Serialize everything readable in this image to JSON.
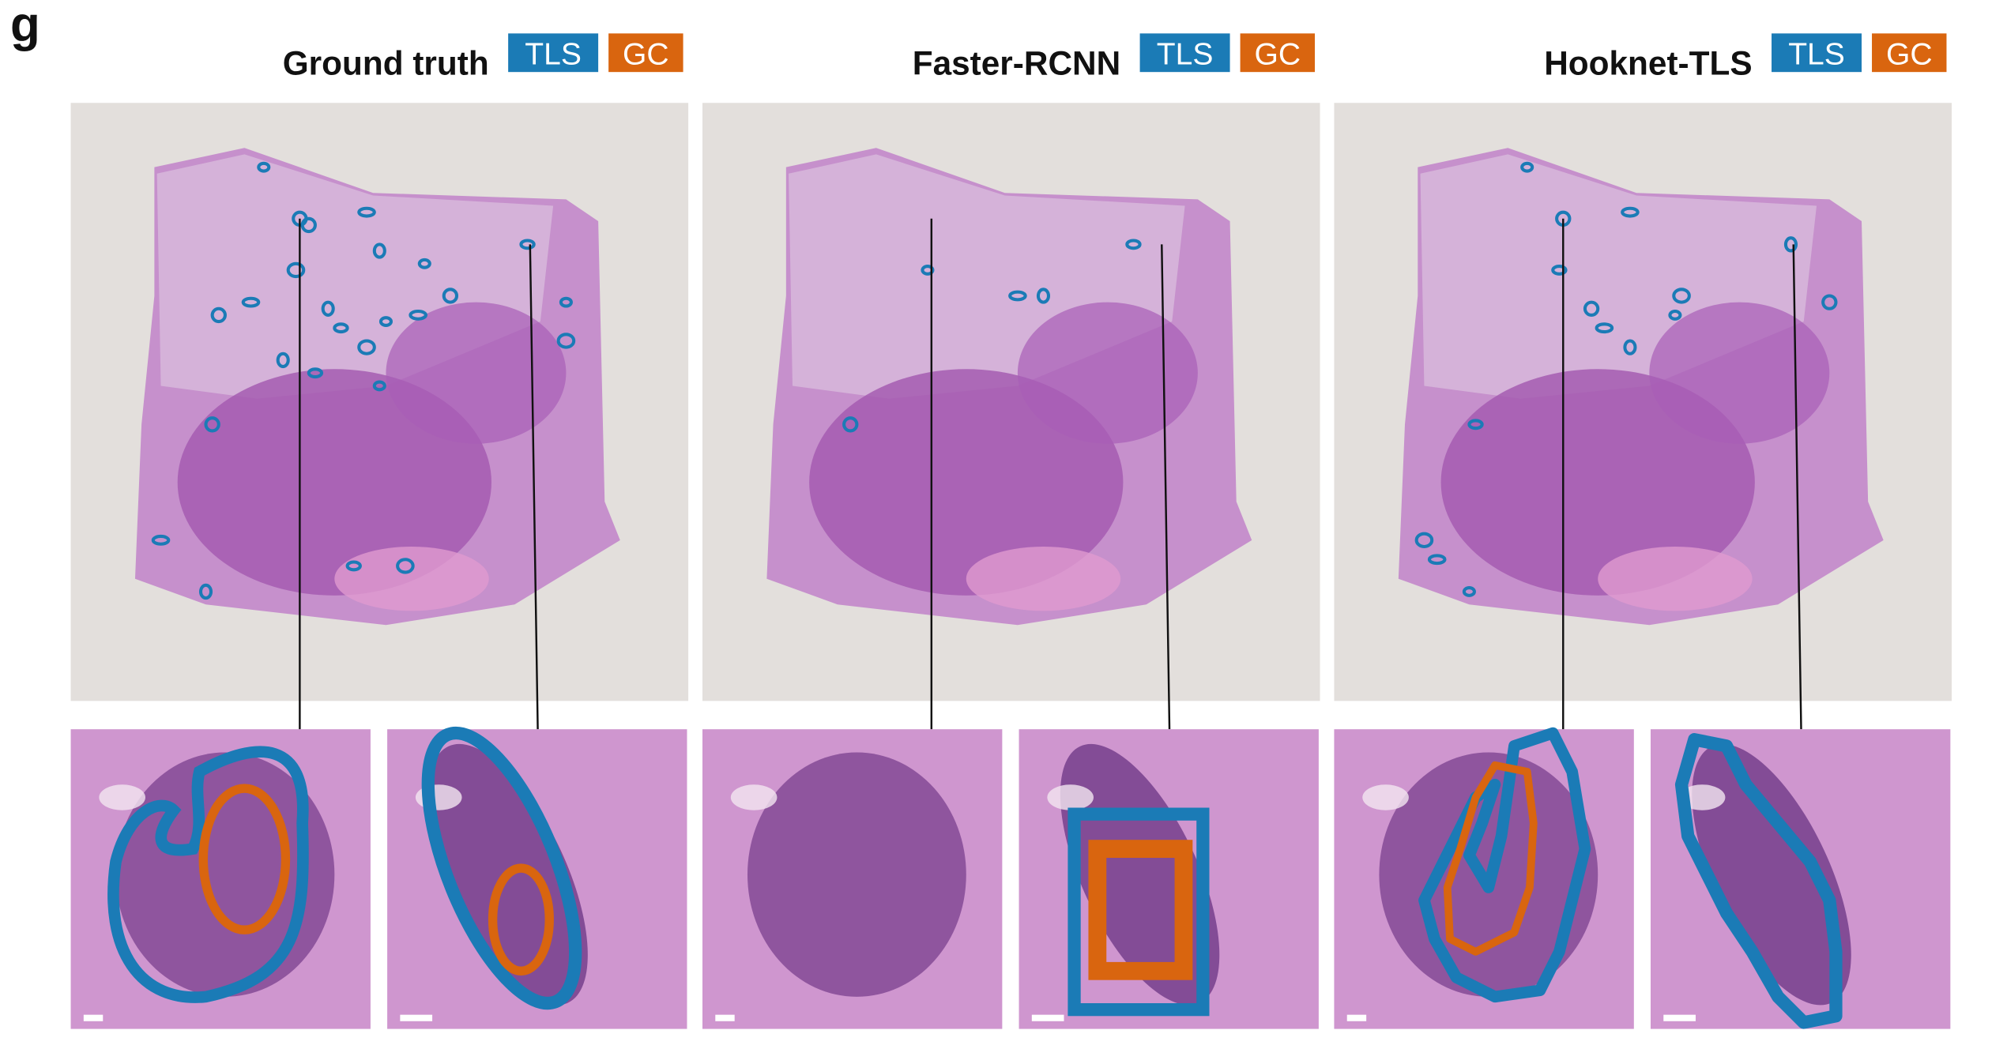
{
  "panel_label": "g",
  "panels": [
    {
      "title": "Ground truth",
      "legend": [
        "TLS",
        "GC"
      ]
    },
    {
      "title": "Faster-RCNN",
      "legend": [
        "TLS",
        "GC"
      ]
    },
    {
      "title": "Hooknet-TLS",
      "legend": [
        "TLS",
        "GC"
      ]
    }
  ]
}
